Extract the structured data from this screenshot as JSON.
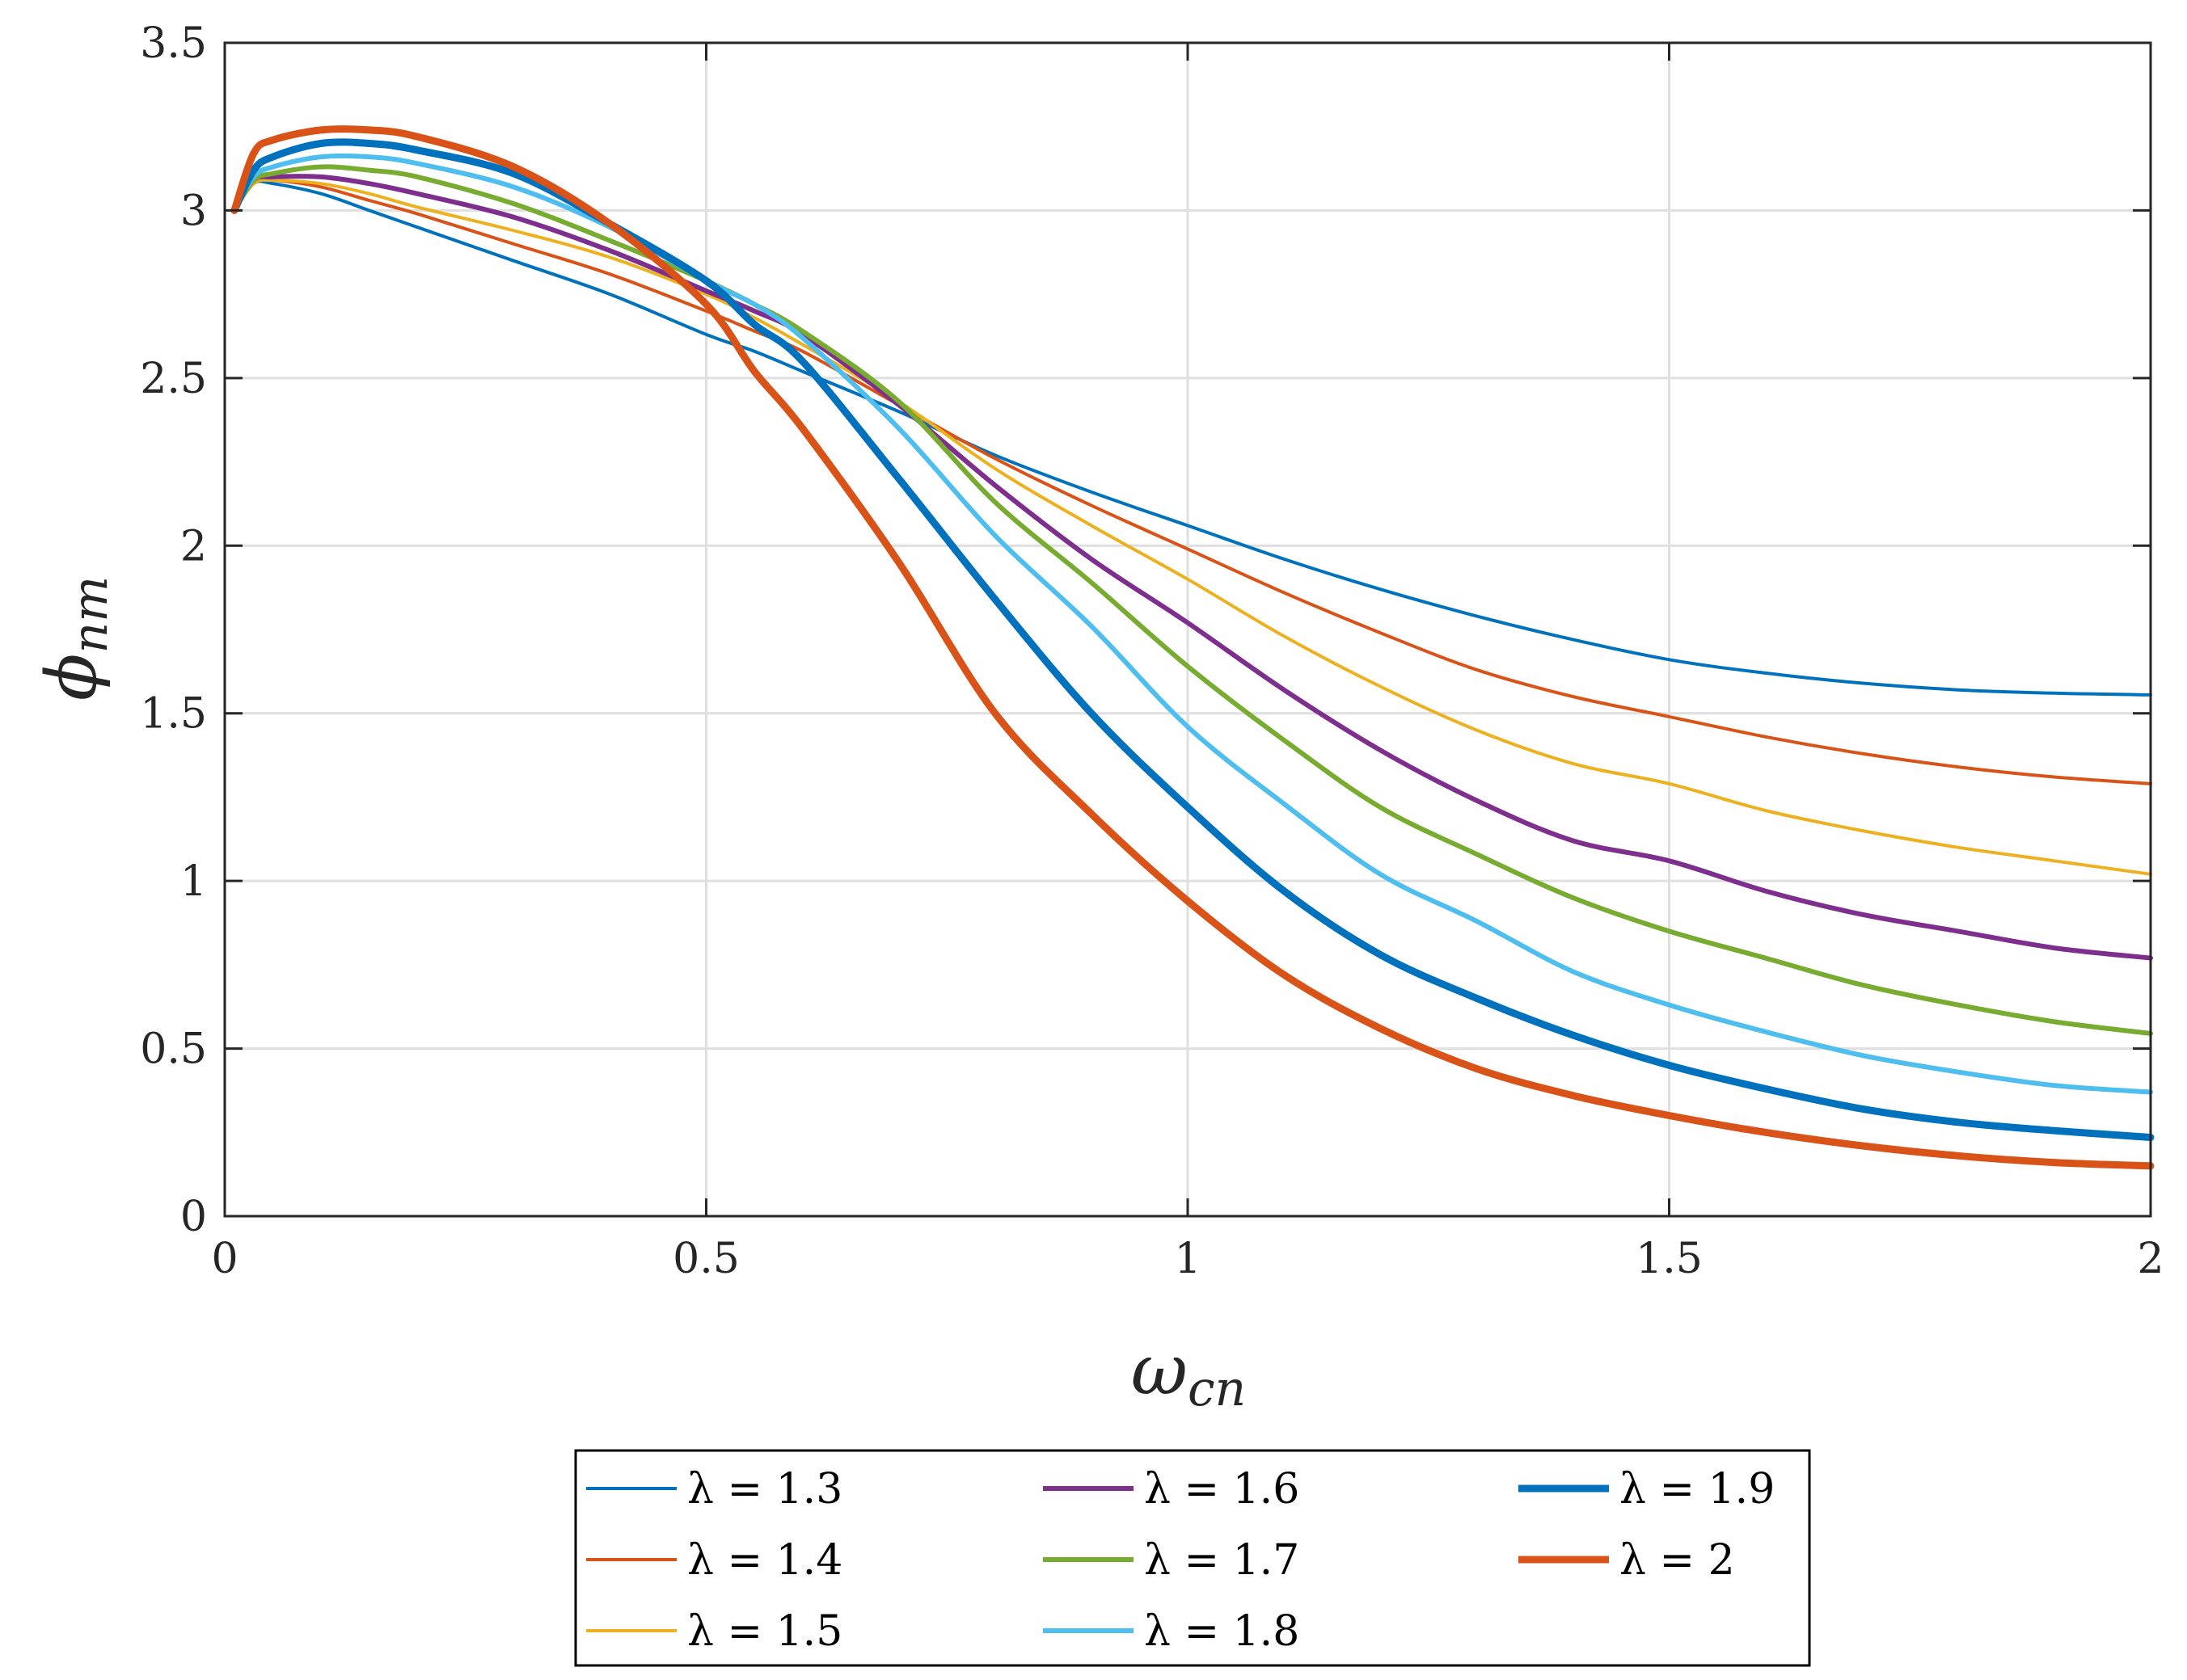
{
  "chart_data": {
    "type": "line",
    "xlabel_main": "ω",
    "xlabel_sub": "cn",
    "ylabel_main": "ϕ",
    "ylabel_sub": "nm",
    "xlim": [
      0,
      2
    ],
    "ylim": [
      0,
      3.5
    ],
    "grid": true,
    "legend_location": "bottom-outside",
    "x_ticks": [
      {
        "value": 0,
        "label": "0"
      },
      {
        "value": 0.5,
        "label": "0.5"
      },
      {
        "value": 1,
        "label": "1"
      },
      {
        "value": 1.5,
        "label": "1.5"
      },
      {
        "value": 2,
        "label": "2"
      }
    ],
    "y_ticks": [
      {
        "value": 0,
        "label": "0"
      },
      {
        "value": 0.5,
        "label": "0.5"
      },
      {
        "value": 1,
        "label": "1"
      },
      {
        "value": 1.5,
        "label": "1.5"
      },
      {
        "value": 2,
        "label": "2"
      },
      {
        "value": 2.5,
        "label": "2.5"
      },
      {
        "value": 3,
        "label": "3"
      },
      {
        "value": 3.5,
        "label": "3.5"
      }
    ],
    "x": [
      0.01,
      0.03,
      0.05,
      0.1,
      0.15,
      0.2,
      0.3,
      0.4,
      0.5,
      0.55,
      0.6,
      0.7,
      0.8,
      0.9,
      1.0,
      1.1,
      1.2,
      1.3,
      1.4,
      1.5,
      1.6,
      1.7,
      1.8,
      1.9,
      2.0
    ],
    "series": [
      {
        "name": "λ = 1.3",
        "color": "#0072BD",
        "weight": "thin",
        "values": [
          3.0,
          3.08,
          3.08,
          3.05,
          3.0,
          2.95,
          2.85,
          2.75,
          2.63,
          2.58,
          2.52,
          2.4,
          2.27,
          2.16,
          2.06,
          1.96,
          1.87,
          1.79,
          1.72,
          1.66,
          1.62,
          1.59,
          1.57,
          1.56,
          1.555
        ]
      },
      {
        "name": "λ = 1.4",
        "color": "#D95319",
        "weight": "thin",
        "values": [
          3.0,
          3.08,
          3.09,
          3.07,
          3.03,
          2.99,
          2.9,
          2.81,
          2.7,
          2.64,
          2.58,
          2.42,
          2.26,
          2.12,
          1.99,
          1.86,
          1.74,
          1.63,
          1.55,
          1.49,
          1.43,
          1.38,
          1.34,
          1.31,
          1.29
        ]
      },
      {
        "name": "λ = 1.5",
        "color": "#EDB120",
        "weight": "thin",
        "values": [
          3.0,
          3.08,
          3.09,
          3.08,
          3.05,
          3.01,
          2.94,
          2.86,
          2.75,
          2.68,
          2.6,
          2.43,
          2.23,
          2.06,
          1.9,
          1.73,
          1.58,
          1.45,
          1.35,
          1.29,
          1.21,
          1.15,
          1.1,
          1.06,
          1.02
        ]
      },
      {
        "name": "λ = 1.6",
        "color": "#7E2F8E",
        "weight": "medium",
        "values": [
          3.0,
          3.09,
          3.1,
          3.1,
          3.08,
          3.05,
          2.98,
          2.88,
          2.76,
          2.7,
          2.63,
          2.42,
          2.18,
          1.96,
          1.77,
          1.57,
          1.39,
          1.24,
          1.12,
          1.06,
          0.97,
          0.9,
          0.85,
          0.8,
          0.77
        ]
      },
      {
        "name": "λ = 1.7",
        "color": "#77AC30",
        "weight": "medium",
        "values": [
          3.0,
          3.09,
          3.11,
          3.13,
          3.12,
          3.1,
          3.02,
          2.91,
          2.79,
          2.72,
          2.64,
          2.43,
          2.13,
          1.89,
          1.64,
          1.42,
          1.22,
          1.08,
          0.95,
          0.85,
          0.77,
          0.69,
          0.63,
          0.58,
          0.545
        ]
      },
      {
        "name": "λ = 1.8",
        "color": "#4DBEEE",
        "weight": "medium",
        "values": [
          3.0,
          3.1,
          3.13,
          3.16,
          3.16,
          3.14,
          3.07,
          2.95,
          2.79,
          2.72,
          2.62,
          2.35,
          2.03,
          1.76,
          1.46,
          1.23,
          1.02,
          0.88,
          0.73,
          0.63,
          0.55,
          0.48,
          0.43,
          0.39,
          0.37
        ]
      },
      {
        "name": "λ = 1.9",
        "color": "#0072BD",
        "weight": "thick",
        "values": [
          3.0,
          3.12,
          3.16,
          3.2,
          3.2,
          3.18,
          3.11,
          2.96,
          2.79,
          2.66,
          2.55,
          2.2,
          1.84,
          1.5,
          1.22,
          0.97,
          0.78,
          0.65,
          0.54,
          0.45,
          0.38,
          0.32,
          0.28,
          0.255,
          0.235
        ]
      },
      {
        "name": "λ = 2",
        "color": "#D95319",
        "weight": "thick",
        "values": [
          3.0,
          3.17,
          3.21,
          3.24,
          3.24,
          3.22,
          3.13,
          2.96,
          2.72,
          2.52,
          2.35,
          1.95,
          1.5,
          1.2,
          0.94,
          0.72,
          0.56,
          0.44,
          0.36,
          0.3,
          0.25,
          0.21,
          0.18,
          0.16,
          0.15
        ]
      }
    ]
  }
}
